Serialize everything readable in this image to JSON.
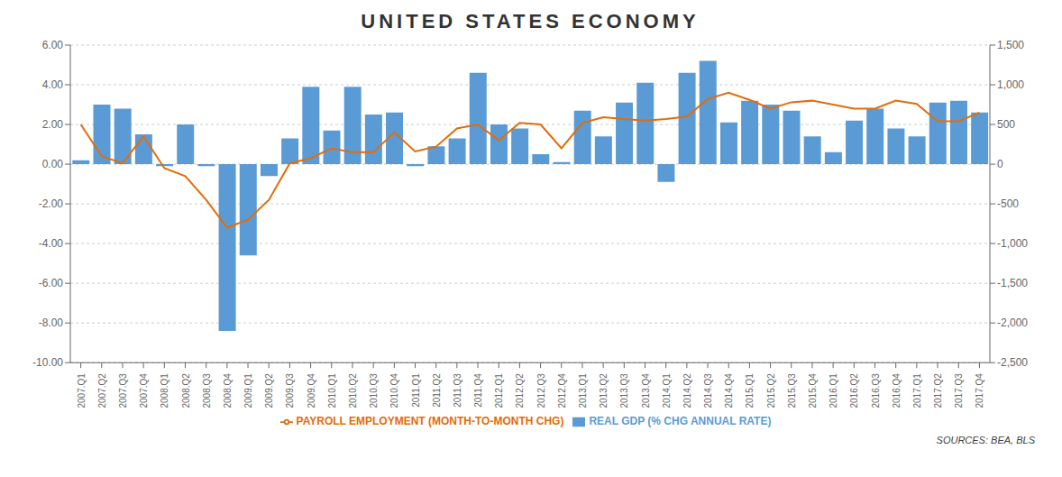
{
  "chart_data": {
    "type": "bar",
    "title": "UNITED STATES ECONOMY",
    "categories": [
      "2007.Q1",
      "2007.Q2",
      "2007.Q3",
      "2007.Q4",
      "2008.Q1",
      "2008.Q2",
      "2008.Q3",
      "2008.Q4",
      "2009.Q1",
      "2009.Q2",
      "2009.Q3",
      "2009.Q4",
      "2010.Q1",
      "2010.Q2",
      "2010.Q3",
      "2010.Q4",
      "2011.Q1",
      "2011.Q2",
      "2011.Q3",
      "2011.Q4",
      "2012.Q1",
      "2012.Q2",
      "2012.Q3",
      "2012.Q4",
      "2013.Q1",
      "2013.Q2",
      "2013.Q3",
      "2013.Q4",
      "2014.Q1",
      "2014.Q2",
      "2014.Q3",
      "2014.Q4",
      "2015.Q1",
      "2015.Q2",
      "2015.Q3",
      "2015.Q4",
      "2016.Q1",
      "2016.Q2",
      "2016.Q3",
      "2016.Q4",
      "2017.Q1",
      "2017.Q2",
      "2017.Q3",
      "2017.Q4"
    ],
    "series": [
      {
        "name": "REAL GDP (% CHG ANNUAL RATE)",
        "type": "bar",
        "color": "#5B9BD5",
        "values": [
          0.2,
          3.0,
          2.8,
          1.5,
          -0.1,
          2.0,
          -0.1,
          -8.4,
          -4.6,
          -0.6,
          1.3,
          3.9,
          1.7,
          3.9,
          2.5,
          2.6,
          -0.1,
          0.9,
          1.3,
          4.6,
          2.0,
          1.8,
          0.5,
          0.1,
          2.7,
          1.4,
          3.1,
          4.1,
          -0.9,
          4.6,
          5.2,
          2.1,
          3.2,
          3.0,
          2.7,
          1.4,
          0.6,
          2.2,
          2.8,
          1.8,
          1.4,
          3.1,
          3.2,
          2.6
        ]
      },
      {
        "name": "PAYROLL EMPLOYMENT (MONTH-TO-MONTH CHG)",
        "type": "line",
        "color": "#E36C09",
        "axis": "y2",
        "values": [
          500,
          100,
          10,
          350,
          -50,
          -150,
          -450,
          -800,
          -700,
          -450,
          10,
          75,
          200,
          150,
          150,
          400,
          160,
          220,
          450,
          500,
          300,
          520,
          500,
          200,
          520,
          590,
          570,
          550,
          570,
          600,
          820,
          900,
          810,
          700,
          780,
          800,
          750,
          700,
          700,
          800,
          760,
          540,
          540,
          650
        ]
      }
    ],
    "ylim": [
      -10.0,
      6.0
    ],
    "yticks": [
      {
        "value": -10.0,
        "label": "-10.00"
      },
      {
        "value": -8.0,
        "label": "-8.00"
      },
      {
        "value": -6.0,
        "label": "-6.00"
      },
      {
        "value": -4.0,
        "label": "-4.00"
      },
      {
        "value": -2.0,
        "label": "-2.00"
      },
      {
        "value": 0.0,
        "label": "0.00"
      },
      {
        "value": 2.0,
        "label": "2.00"
      },
      {
        "value": 4.0,
        "label": "4.00"
      },
      {
        "value": 6.0,
        "label": "6.00"
      }
    ],
    "y2lim": [
      -2500,
      1500
    ],
    "y2ticks": [
      {
        "value": -2500,
        "label": "-2,500"
      },
      {
        "value": -2000,
        "label": "-2,000"
      },
      {
        "value": -1500,
        "label": "-1,500"
      },
      {
        "value": -1000,
        "label": "-1,000"
      },
      -500,
      0,
      500,
      {
        "value": 1000,
        "label": "1,000"
      },
      {
        "value": 1500,
        "label": "1,500"
      }
    ],
    "grid": true,
    "legend": "bottom",
    "annotations": [
      "SOURCES: BEA, BLS"
    ]
  }
}
